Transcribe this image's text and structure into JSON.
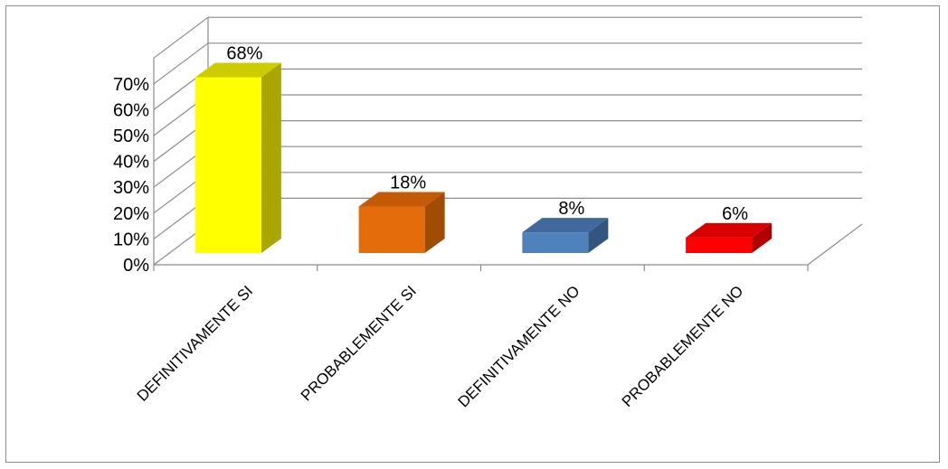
{
  "chart_data": {
    "type": "bar",
    "title": "",
    "xlabel": "",
    "ylabel": "",
    "categories": [
      "DEFINITIVAMENTE SI",
      "PROBABLEMENTE SI",
      "DEFINITIVAMENTE NO",
      "PROBABLEMENTE NO"
    ],
    "values": [
      68,
      18,
      8,
      6
    ],
    "data_labels": [
      "68%",
      "18%",
      "8%",
      "6%"
    ],
    "yticks": [
      "0%",
      "10%",
      "20%",
      "30%",
      "40%",
      "50%",
      "60%",
      "70%"
    ],
    "ylim": [
      0,
      80
    ],
    "grid": true,
    "legend": "none",
    "colors": [
      {
        "front": "#ffff00",
        "side": "#aaa600",
        "top": "#cccc00"
      },
      {
        "front": "#e46c0a",
        "side": "#a04c06",
        "top": "#c25a08"
      },
      {
        "front": "#4f81bd",
        "side": "#34567e",
        "top": "#41699c"
      },
      {
        "front": "#ff0000",
        "side": "#b00000",
        "top": "#d80000"
      }
    ],
    "wall_color": "#8c8c8c"
  }
}
